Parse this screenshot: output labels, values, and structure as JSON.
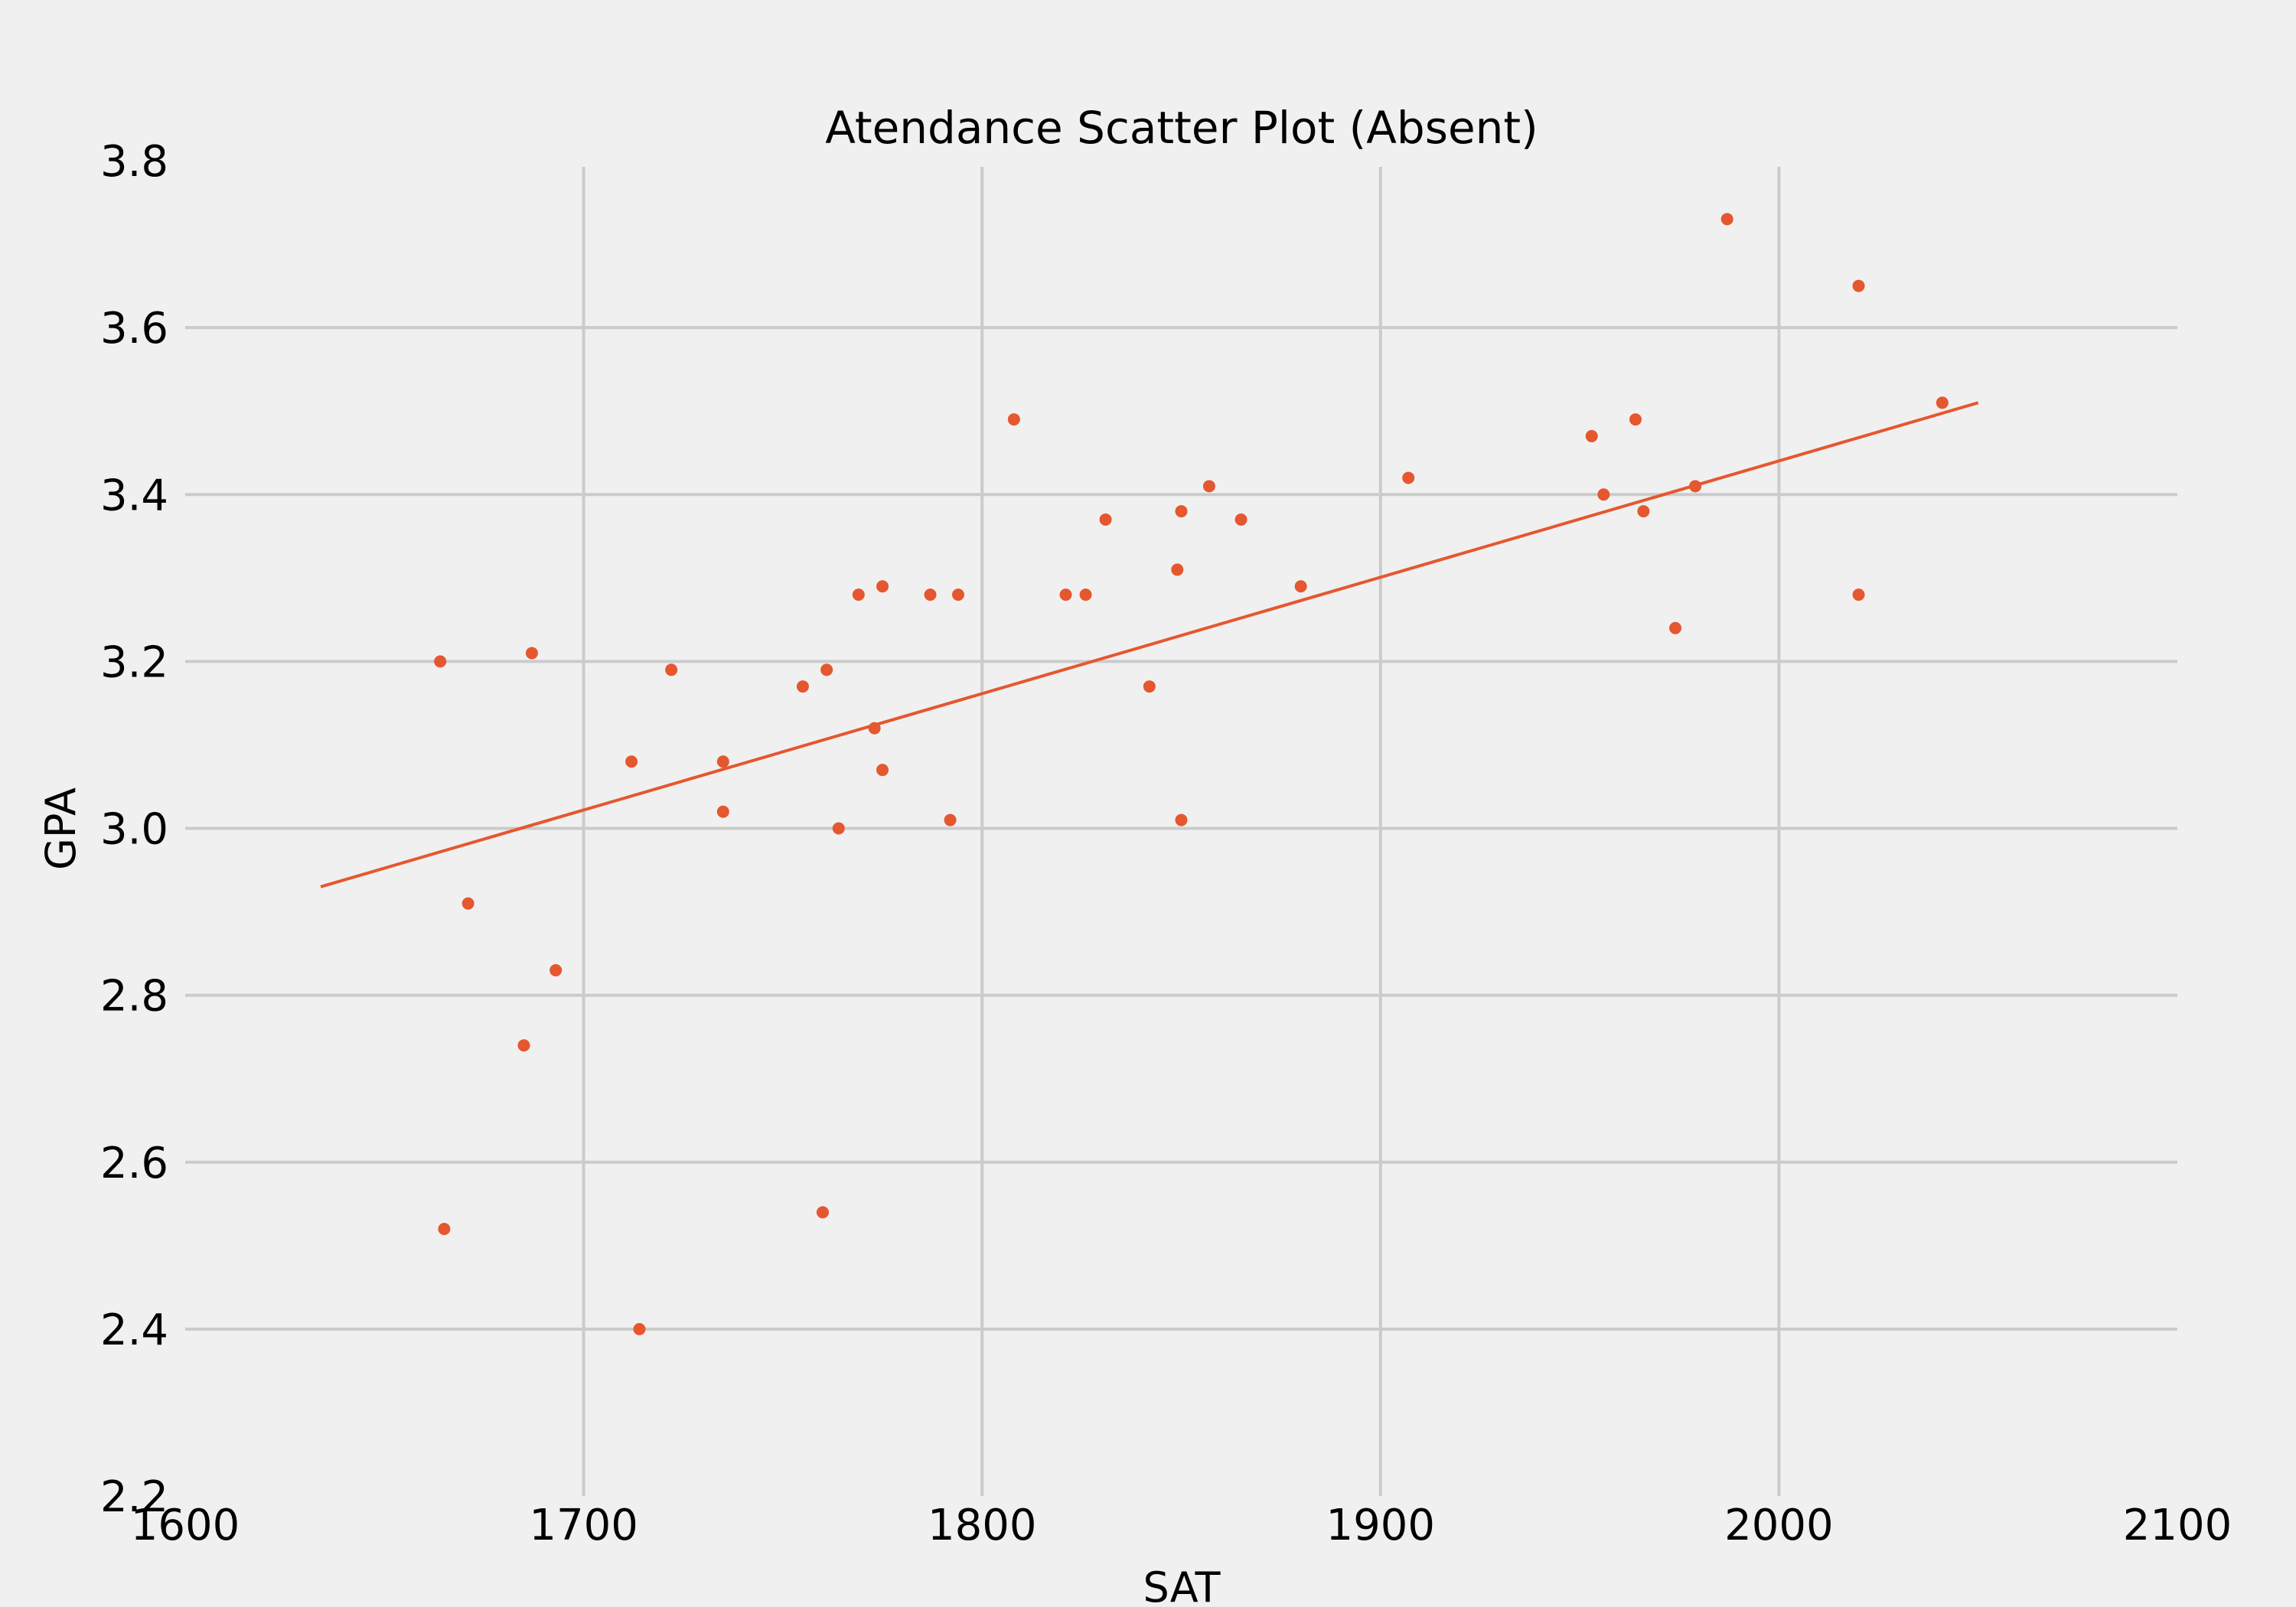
{
  "chart_data": {
    "type": "scatter",
    "title": "Atendance Scatter Plot (Absent)",
    "xlabel": "SAT",
    "ylabel": "GPA",
    "xlim": [
      1600,
      2100
    ],
    "ylim": [
      2.2,
      3.8
    ],
    "xticks": [
      1600,
      1700,
      1800,
      1900,
      2000,
      2100
    ],
    "yticks": [
      2.2,
      2.4,
      2.6,
      2.8,
      3.0,
      3.2,
      3.4,
      3.6,
      3.8
    ],
    "xtick_labels": [
      "1600",
      "1700",
      "1800",
      "1900",
      "2000",
      "2100"
    ],
    "ytick_labels": [
      "2.2",
      "2.4",
      "2.6",
      "2.8",
      "3.0",
      "3.2",
      "3.4",
      "3.6",
      "3.8"
    ],
    "grid": true,
    "series": [
      {
        "name": "Absent",
        "color": "#e5572f",
        "points": [
          [
            1664,
            3.2
          ],
          [
            1665,
            2.52
          ],
          [
            1671,
            2.91
          ],
          [
            1685,
            2.74
          ],
          [
            1687,
            3.21
          ],
          [
            1693,
            2.83
          ],
          [
            1712,
            3.08
          ],
          [
            1714,
            2.4
          ],
          [
            1722,
            3.19
          ],
          [
            1735,
            3.08
          ],
          [
            1735,
            3.02
          ],
          [
            1755,
            3.17
          ],
          [
            1760,
            2.54
          ],
          [
            1761,
            3.19
          ],
          [
            1764,
            3.0
          ],
          [
            1769,
            3.28
          ],
          [
            1773,
            3.12
          ],
          [
            1775,
            3.29
          ],
          [
            1775,
            3.07
          ],
          [
            1787,
            3.28
          ],
          [
            1792,
            3.01
          ],
          [
            1794,
            3.28
          ],
          [
            1808,
            3.49
          ],
          [
            1821,
            3.28
          ],
          [
            1826,
            3.28
          ],
          [
            1831,
            3.37
          ],
          [
            1842,
            3.17
          ],
          [
            1849,
            3.31
          ],
          [
            1850,
            3.38
          ],
          [
            1850,
            3.01
          ],
          [
            1857,
            3.41
          ],
          [
            1865,
            3.37
          ],
          [
            1880,
            3.29
          ],
          [
            1907,
            3.42
          ],
          [
            1953,
            3.47
          ],
          [
            1956,
            3.4
          ],
          [
            1964,
            3.49
          ],
          [
            1966,
            3.38
          ],
          [
            1974,
            3.24
          ],
          [
            1979,
            3.41
          ],
          [
            1987,
            3.73
          ],
          [
            2020,
            3.65
          ],
          [
            2020,
            3.28
          ],
          [
            2041,
            3.51
          ]
        ]
      }
    ],
    "fit_line": {
      "color": "#e5572f",
      "x": [
        1634,
        2050
      ],
      "y": [
        2.93,
        3.51
      ]
    }
  }
}
